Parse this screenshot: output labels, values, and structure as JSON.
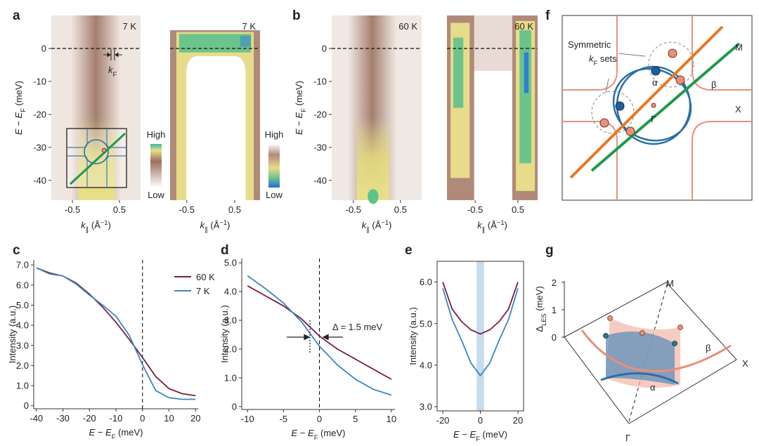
{
  "chart_data": [
    {
      "type": "heatmap",
      "panel": "a",
      "temperature": "7 K",
      "xlabel": [
        "k",
        "∥",
        " (Å",
        "−1",
        ")"
      ],
      "ylabel": [
        "E",
        " − ",
        "E",
        "F",
        " (meV)"
      ],
      "xlim": [
        -0.95,
        0.95
      ],
      "ylim": [
        -46,
        10
      ],
      "xticks": [
        -0.5,
        0.5
      ],
      "yticks": [
        0,
        -10,
        -20,
        -30,
        -40
      ],
      "hline": 0,
      "annotation": [
        "k",
        "F"
      ],
      "colorbar": [
        "High",
        "Low"
      ]
    },
    {
      "type": "heatmap",
      "temperature": "7 K",
      "xlabel": [
        "k",
        "∥",
        " (Å",
        "−1",
        ")"
      ],
      "xlim": [
        -0.85,
        1.03
      ],
      "ylim": [
        -46,
        10
      ],
      "xticks": [
        -0.5,
        0.5
      ],
      "hline": 0,
      "colorbar": [
        "High",
        "Low"
      ]
    },
    {
      "type": "heatmap",
      "panel": "b",
      "temperature": "60 K",
      "xlabel": [
        "k",
        "∥",
        " (Å",
        "−1",
        ")"
      ],
      "ylabel": [
        "E",
        " − ",
        "E",
        "F",
        " (meV)"
      ],
      "xlim": [
        -0.96,
        0.95
      ],
      "ylim": [
        -46,
        10
      ],
      "xticks": [
        -0.5,
        0.5
      ],
      "yticks": [
        0,
        -10,
        -20,
        -30,
        -40
      ],
      "hline": 0
    },
    {
      "type": "heatmap",
      "temperature": "60 K",
      "xlabel": [
        "k",
        "∥",
        " (Å",
        "−1",
        ")"
      ],
      "xlim": [
        -1.16,
        0.96
      ],
      "ylim": [
        -46,
        10
      ],
      "xticks": [
        -0.5,
        0.5
      ],
      "hline": 0
    },
    {
      "type": "line",
      "panel": "c",
      "xlabel": [
        "E",
        " − ",
        "E",
        "F",
        " (meV)"
      ],
      "ylabel": [
        "Intensity (a.u.)"
      ],
      "x": [
        -40,
        -35,
        -30,
        -25,
        -20,
        -15,
        -10,
        -5,
        0,
        5,
        10,
        15,
        20
      ],
      "series": [
        {
          "name": "60 K",
          "color": "#7a1e3e",
          "values": [
            6.85,
            6.6,
            6.45,
            6.1,
            5.55,
            4.9,
            4.15,
            3.3,
            2.4,
            1.45,
            0.85,
            0.6,
            0.5
          ]
        },
        {
          "name": "7 K",
          "color": "#3b86c1",
          "values": [
            6.85,
            6.55,
            6.45,
            6.05,
            5.5,
            5.0,
            4.45,
            3.5,
            2.05,
            0.75,
            0.4,
            0.32,
            0.32
          ]
        }
      ],
      "xlim": [
        -41,
        21
      ],
      "ylim": [
        -0.15,
        7.25
      ],
      "xticks": [
        -40,
        -30,
        -20,
        -10,
        0,
        10,
        20
      ],
      "yticks": [
        0,
        {
          "value": 1,
          "label": "1.0"
        },
        {
          "value": 2,
          "label": "2.0"
        },
        {
          "value": 3,
          "label": "3.0"
        },
        {
          "value": 4,
          "label": "4.0"
        },
        {
          "value": 5,
          "label": "5.0"
        },
        {
          "value": 6,
          "label": "6.0"
        },
        {
          "value": 7,
          "label": "7.0"
        }
      ],
      "vline": 0
    },
    {
      "type": "line",
      "panel": "d",
      "xlabel": [
        "E",
        " − ",
        "E",
        "F",
        " (meV)"
      ],
      "ylabel": [
        "Intensity (a.u.)"
      ],
      "x": [
        -10,
        -7.5,
        -5,
        -2.5,
        0,
        2.5,
        5,
        7.5,
        10
      ],
      "series": [
        {
          "color": "#7a1e3e",
          "values": [
            4.2,
            3.85,
            3.5,
            3.05,
            2.45,
            2.0,
            1.65,
            1.3,
            0.95
          ]
        },
        {
          "color": "#3b86c1",
          "values": [
            4.55,
            4.1,
            3.6,
            2.95,
            2.1,
            1.45,
            0.95,
            0.6,
            0.4
          ]
        }
      ],
      "xlim": [
        -10.8,
        10.5
      ],
      "ylim": [
        -0.1,
        5.15
      ],
      "xticks": [
        -10,
        -5,
        0,
        5,
        10
      ],
      "yticks": [
        0,
        {
          "value": 1,
          "label": "1.0"
        },
        {
          "value": 2,
          "label": "2.0"
        },
        {
          "value": 3,
          "label": "3.0"
        },
        {
          "value": 4,
          "label": "4.0"
        },
        {
          "value": 5,
          "label": "5.0"
        }
      ],
      "vline": 0,
      "annotation": "Δ = 1.5 meV"
    },
    {
      "type": "line",
      "panel": "e",
      "xlabel": [
        "E",
        " − ",
        "E",
        "F",
        " (meV)"
      ],
      "ylabel": [
        "Intensity (a.u.)"
      ],
      "x": [
        -20,
        -15,
        -10,
        -5,
        0,
        5,
        10,
        15,
        20
      ],
      "series": [
        {
          "color": "#7a1e3e",
          "values": [
            6.0,
            5.35,
            5.05,
            4.85,
            4.75,
            4.85,
            5.05,
            5.35,
            6.0
          ]
        },
        {
          "color": "#3b86c1",
          "values": [
            5.85,
            5.1,
            4.6,
            4.05,
            3.75,
            4.05,
            4.6,
            5.1,
            5.85
          ]
        }
      ],
      "xlim": [
        -23,
        23
      ],
      "ylim": [
        2.9,
        6.5
      ],
      "xticks": [
        -20,
        0,
        20
      ],
      "yticks": [
        {
          "value": 3,
          "label": "3.0"
        },
        {
          "value": 4,
          "label": "4.0"
        },
        {
          "value": 5,
          "label": "5.0"
        },
        {
          "value": 6,
          "label": "6.0"
        }
      ],
      "band": [
        -2,
        2
      ]
    }
  ],
  "diagrams": {
    "f": {
      "panel": "f",
      "M": "M",
      "X": "X",
      "Gamma": "Γ",
      "alpha": "α",
      "beta": "β",
      "note": {
        "line1": "Symmetric",
        "line2": [
          "k",
          "F",
          " sets"
        ]
      }
    },
    "g": {
      "panel": "g",
      "axis_label": [
        "Δ",
        "LES",
        " (meV)"
      ],
      "ticks": [
        0,
        1,
        2
      ],
      "M": "M",
      "X": "X",
      "Gamma": "Γ",
      "alpha": "α",
      "beta": "β"
    }
  }
}
